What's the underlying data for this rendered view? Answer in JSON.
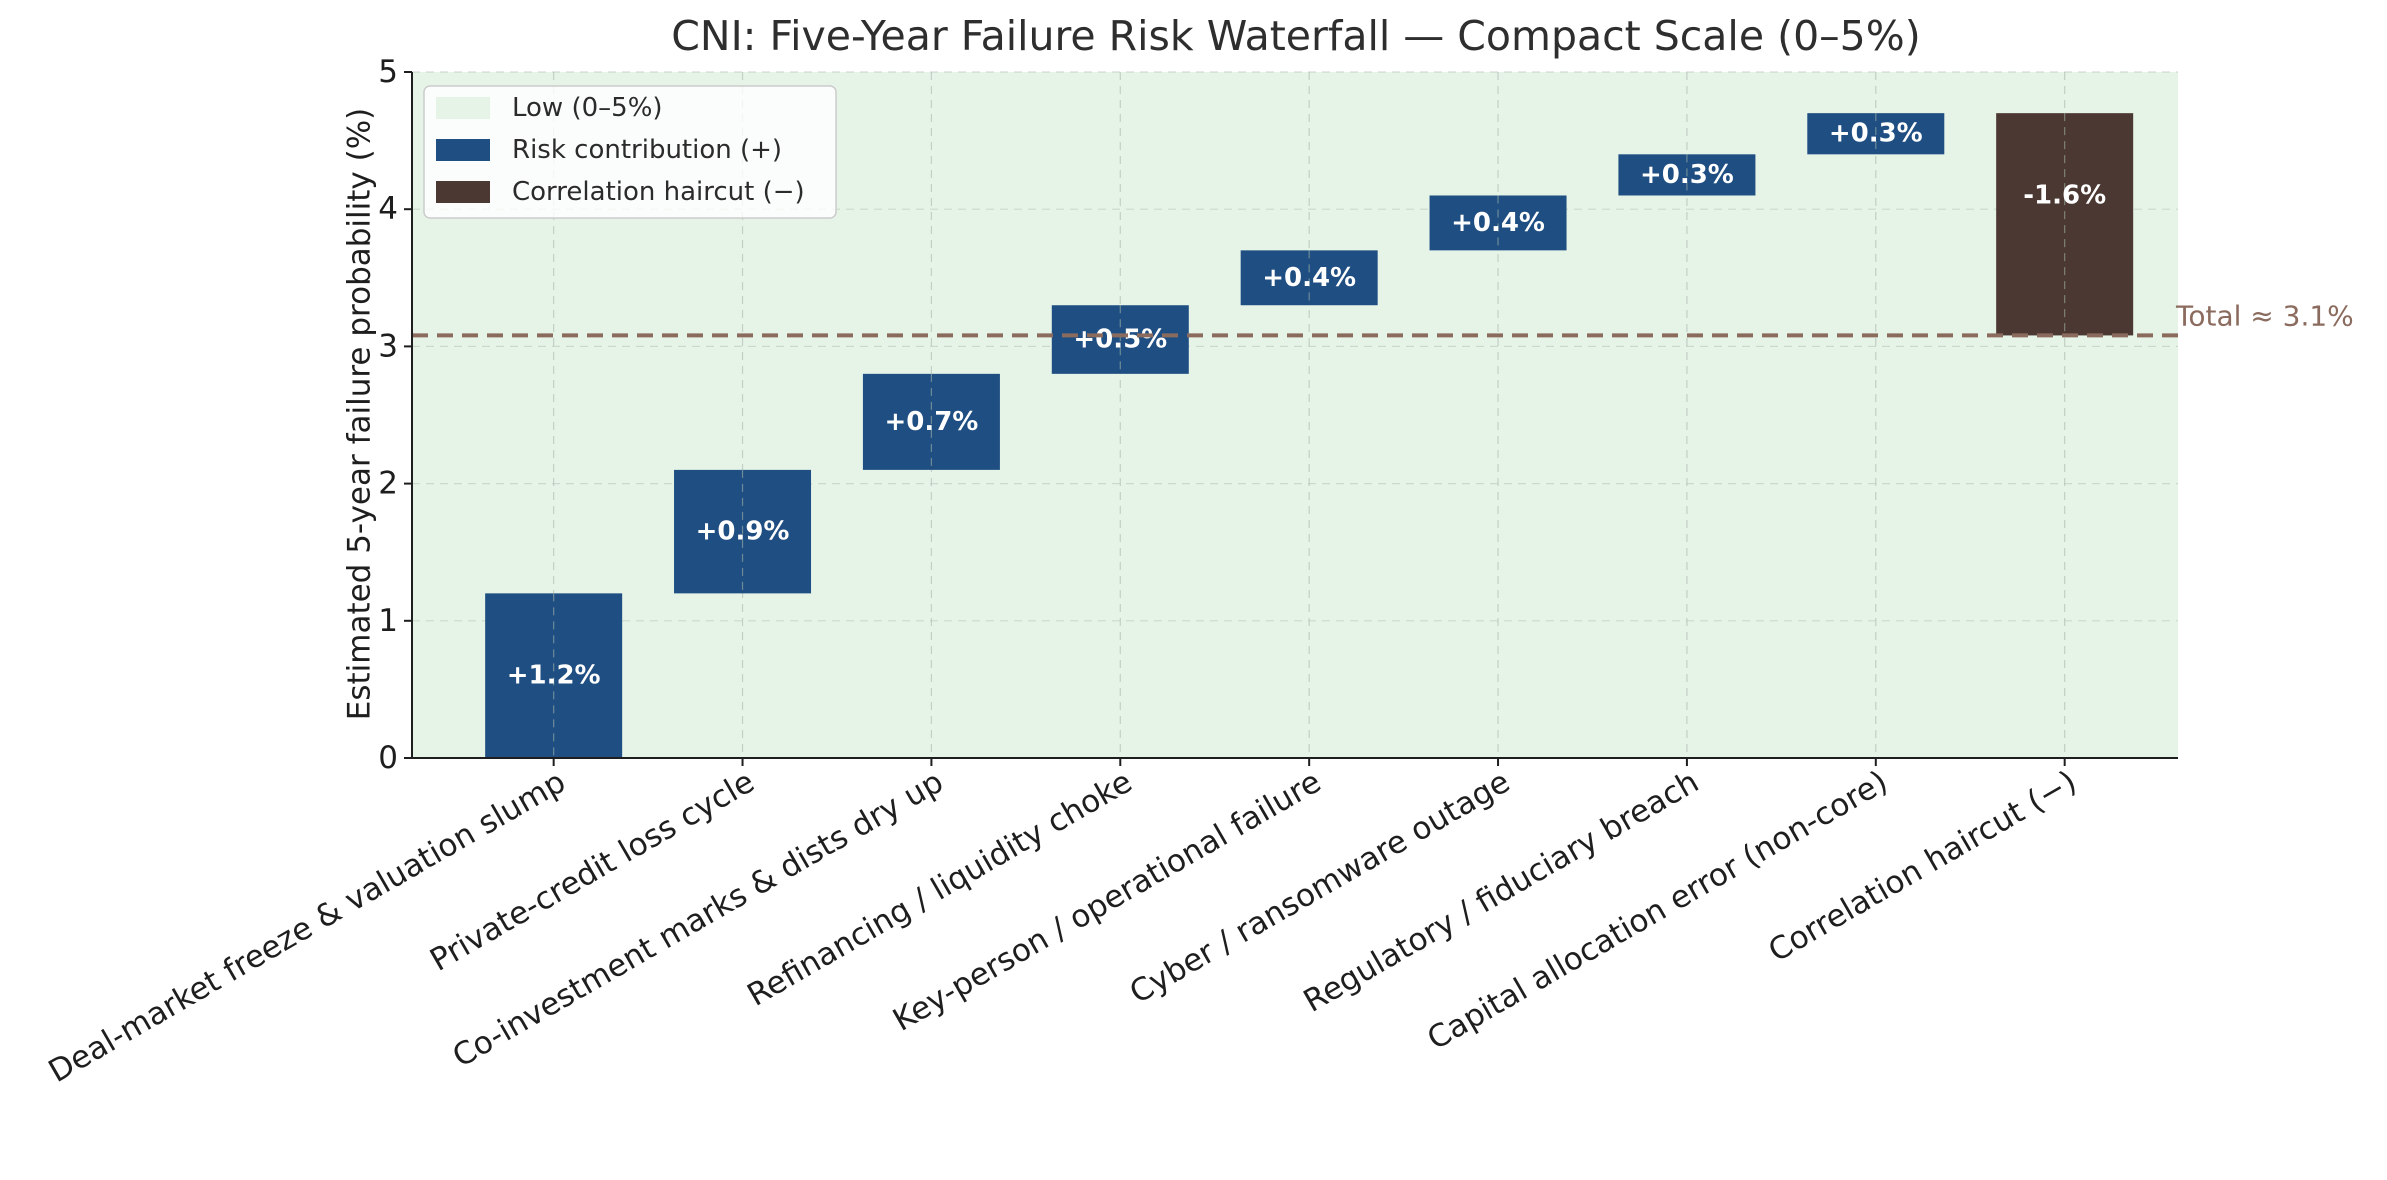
{
  "chart_data": {
    "type": "waterfall",
    "title": "CNI: Five-Year Failure Risk Waterfall — Compact Scale (0–5%)",
    "xlabel": "",
    "ylabel": "Estimated 5-year failure probability (%)",
    "ylim": [
      0,
      5
    ],
    "yticks": [
      "0",
      "1",
      "2",
      "3",
      "4",
      "5"
    ],
    "grid": true,
    "legend_position": "top-left",
    "categories": [
      "Deal-market freeze & valuation slump",
      "Private-credit loss cycle",
      "Co-investment marks & dists dry up",
      "Refinancing / liquidity choke",
      "Key-person / operational failure",
      "Cyber / ransomware outage",
      "Regulatory / fiduciary breach",
      "Capital allocation error (non-core)",
      "Correlation haircut (−)"
    ],
    "bars": [
      {
        "start": 0.0,
        "end": 1.2,
        "value": 1.2,
        "label": "+1.2%",
        "kind": "risk"
      },
      {
        "start": 1.2,
        "end": 2.1,
        "value": 0.9,
        "label": "+0.9%",
        "kind": "risk"
      },
      {
        "start": 2.1,
        "end": 2.8,
        "value": 0.7,
        "label": "+0.7%",
        "kind": "risk"
      },
      {
        "start": 2.8,
        "end": 3.3,
        "value": 0.5,
        "label": "+0.5%",
        "kind": "risk"
      },
      {
        "start": 3.3,
        "end": 3.7,
        "value": 0.4,
        "label": "+0.4%",
        "kind": "risk"
      },
      {
        "start": 3.7,
        "end": 4.1,
        "value": 0.4,
        "label": "+0.4%",
        "kind": "risk"
      },
      {
        "start": 4.1,
        "end": 4.4,
        "value": 0.3,
        "label": "+0.3%",
        "kind": "risk"
      },
      {
        "start": 4.4,
        "end": 4.7,
        "value": 0.3,
        "label": "+0.3%",
        "kind": "risk"
      },
      {
        "start": 4.7,
        "end": 3.08,
        "value": -1.6,
        "label": "-1.6%",
        "kind": "haircut"
      }
    ],
    "total": {
      "value": 3.08,
      "label": "Total ≈ 3.1%"
    },
    "band": {
      "from": 0,
      "to": 5,
      "label": "Low (0–5%)"
    },
    "legend": [
      {
        "key": "band",
        "label": "Low (0–5%)"
      },
      {
        "key": "risk",
        "label": "Risk contribution (+)"
      },
      {
        "key": "haircut",
        "label": "Correlation haircut (−)"
      }
    ],
    "colors": {
      "band": "#e6f4e8",
      "risk": "#1f4e82",
      "haircut": "#4b3832",
      "total_line": "#8b6b5e",
      "grid": "#b8c2b8",
      "axis": "#1e1e1e"
    }
  }
}
